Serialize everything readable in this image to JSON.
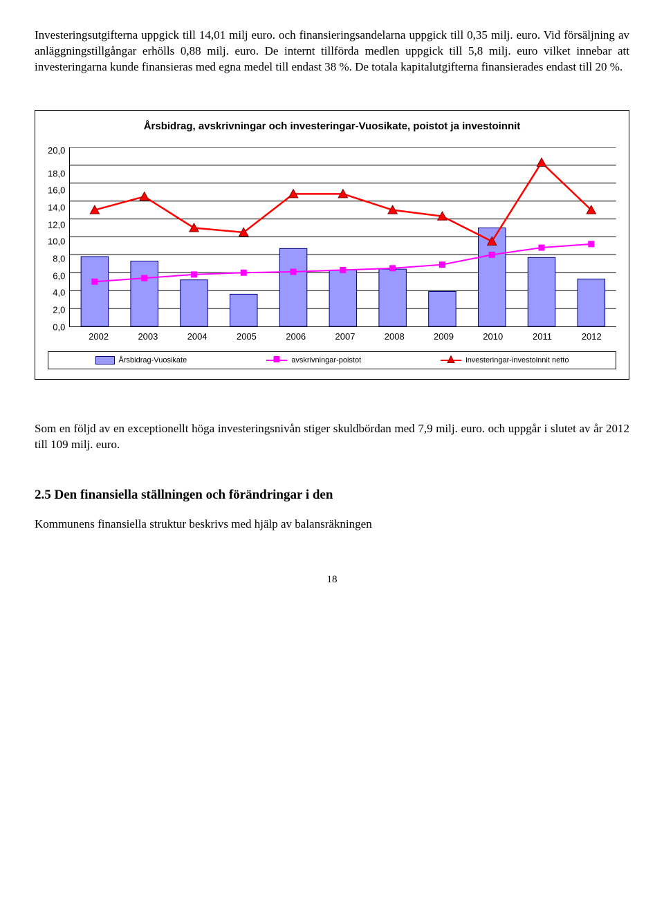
{
  "text": {
    "para1": "Investeringsutgifterna uppgick till 14,01 milj euro. och finansieringsandelarna uppgick till 0,35 milj. euro. Vid försäljning av anläggningstillgångar erhölls 0,88 milj. euro. De internt tillförda medlen uppgick till 5,8 milj. euro vilket innebar att investeringarna kunde finansieras med egna medel till endast 38 %. De totala kapitalutgifterna finansierades endast till 20 %.",
    "para2": "Som en följd av en exceptionellt höga investeringsnivån stiger skuldbördan med 7,9 milj. euro. och uppgår i slutet av år 2012 till 109 milj. euro.",
    "heading": "2.5 Den finansiella ställningen och förändringar i den",
    "para3": "Kommunens finansiella struktur beskrivs med hjälp av balansräkningen",
    "page": "18"
  },
  "chart": {
    "title": "Årsbidrag, avskrivningar och investeringar-Vuosikate, poistot ja investoinnit",
    "ylim": [
      0,
      20
    ],
    "ytick_step": 2,
    "y_ticks": [
      "20,0",
      "18,0",
      "16,0",
      "14,0",
      "12,0",
      "10,0",
      "8,0",
      "6,0",
      "4,0",
      "2,0",
      "0,0"
    ],
    "categories": [
      "2002",
      "2003",
      "2004",
      "2005",
      "2006",
      "2007",
      "2008",
      "2009",
      "2010",
      "2011",
      "2012"
    ],
    "bars": {
      "label": "Årsbidrag-Vuosikate",
      "values": [
        7.8,
        7.3,
        5.2,
        3.6,
        8.7,
        6.3,
        6.4,
        3.9,
        11.0,
        7.7,
        5.3
      ],
      "fill": "#9999ff",
      "border": "#000080",
      "width_frac": 0.55
    },
    "line1": {
      "label": "avskrivningar-poistot",
      "values": [
        5.0,
        5.4,
        5.8,
        6.0,
        6.1,
        6.3,
        6.5,
        6.9,
        8.0,
        8.8,
        9.2
      ],
      "color": "#ff00ff",
      "marker": "square",
      "marker_size": 8,
      "marker_fill": "#ff00ff",
      "marker_border": "#ff00ff",
      "line_width": 2
    },
    "line2": {
      "label": "investeringar-investoinnit netto",
      "values": [
        13.0,
        14.5,
        11.0,
        10.5,
        14.8,
        14.8,
        13.0,
        12.3,
        9.5,
        18.3,
        13.0
      ],
      "color": "#ff0000",
      "marker": "triangle",
      "marker_size": 11,
      "marker_fill": "#ff0000",
      "marker_border": "#800000",
      "line_width": 2.5
    },
    "grid_color": "#000000",
    "background": "#ffffff"
  }
}
